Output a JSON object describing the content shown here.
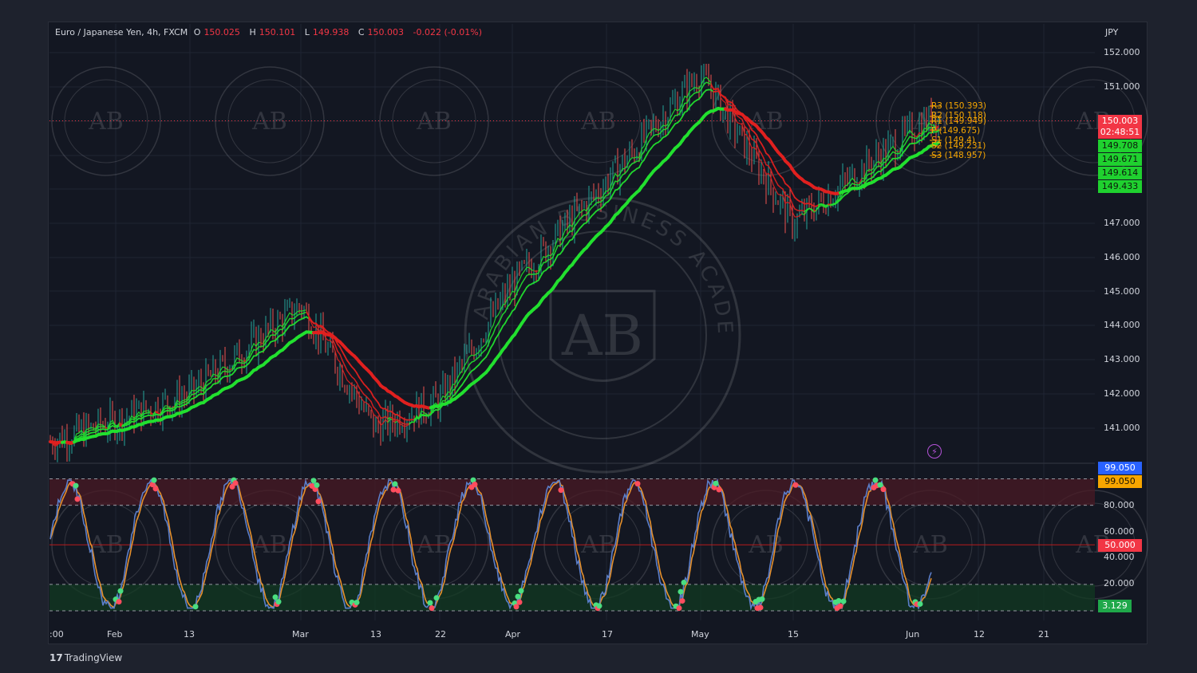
{
  "legend": {
    "symbol": "Euro / Japanese Yen, 4h, FXCM",
    "open_label": "O",
    "open": "150.025",
    "high_label": "H",
    "high": "150.101",
    "low_label": "L",
    "low": "149.938",
    "close_label": "C",
    "close": "150.003",
    "change": "-0.022 (-0.01%)"
  },
  "currency": "JPY",
  "price_axis": [
    "152.000",
    "151.000",
    "147.000",
    "146.000",
    "145.000",
    "144.000",
    "143.000",
    "142.000",
    "141.000"
  ],
  "price_tags": {
    "last": "150.003",
    "countdown": "02:48:51",
    "ema1": "149.708",
    "ema2": "149.671",
    "ema3": "149.614",
    "ema4": "149.433"
  },
  "pivots": {
    "r3": "R3 (150.393)",
    "r2": "R2 (150.118)",
    "r1": "R1 (149.949)",
    "p": "P (149.675)",
    "s1": "S1 (149.4)",
    "s2": "S2 (149.231)",
    "s3": "S3 (148.957)"
  },
  "osc_axis": [
    "80.000",
    "60.000",
    "40.000",
    "20.000"
  ],
  "osc_tags": {
    "k": "99.050",
    "d": "99.050",
    "mid": "50.000",
    "low": "3.129"
  },
  "time_axis": [
    ":00",
    "Feb",
    "13",
    "Mar",
    "13",
    "22",
    "Apr",
    "17",
    "May",
    "15",
    "Jun",
    "12",
    "21"
  ],
  "watermark": {
    "text": "ARABIAN BUSINESS ACADEMY",
    "initials": "AB"
  },
  "colors": {
    "background": "#131722",
    "up": "#22c55e",
    "down": "#e53935",
    "pivot": "#f7a600",
    "k_line": "#5b7ec9",
    "d_line": "#e6902c"
  },
  "branding": "TradingView",
  "chart_data": {
    "type": "line",
    "title": "Euro / Japanese Yen, 4h, FXCM",
    "ylabel": "JPY",
    "ylim": [
      140.0,
      152.3
    ],
    "categories": [
      ":00",
      "Feb",
      "13",
      "Mar",
      "13",
      "22",
      "Apr",
      "17",
      "May",
      "15",
      "Jun"
    ],
    "series": [
      {
        "values": [
          140.6,
          141.2,
          142.0,
          144.6,
          141.0,
          141.8,
          145.2,
          148.2,
          151.4,
          147.0,
          150.0
        ]
      },
      {
        "values": [
          140.2,
          140.8,
          141.3,
          144.3,
          142.0,
          141.5,
          143.8,
          147.5,
          150.6,
          148.5,
          149.7
        ]
      },
      {
        "values": [
          140.0,
          140.5,
          141.0,
          143.9,
          144.1,
          142.2,
          142.6,
          145.6,
          148.4,
          148.8,
          149.4
        ]
      }
    ]
  }
}
